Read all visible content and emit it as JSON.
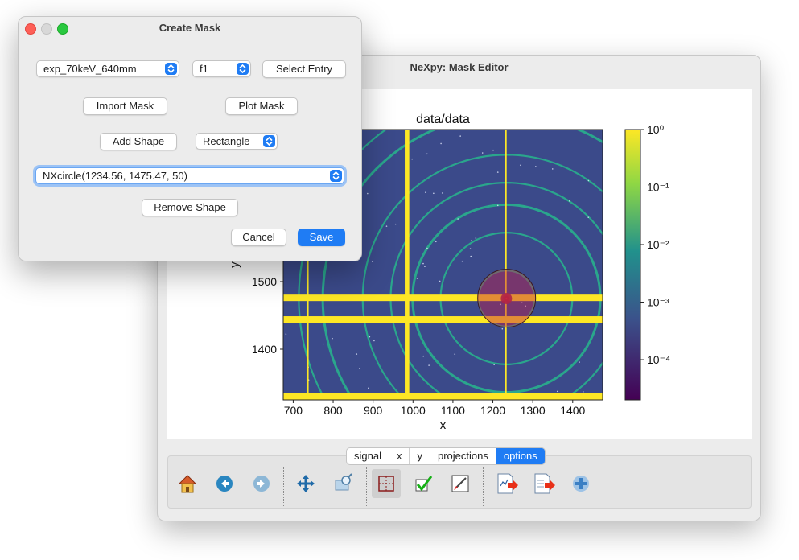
{
  "dialog": {
    "title": "Create Mask",
    "entry_select": "exp_70keV_640mm",
    "field_select": "f1",
    "select_entry_label": "Select Entry",
    "import_mask_label": "Import Mask",
    "plot_mask_label": "Plot Mask",
    "add_shape_label": "Add Shape",
    "shape_type_select": "Rectangle",
    "shape_list_select": "NXcircle(1234.56, 1475.47, 50)",
    "remove_shape_label": "Remove Shape",
    "cancel_label": "Cancel",
    "save_label": "Save"
  },
  "editor": {
    "title": "NeXpy: Mask Editor",
    "tabs": [
      "signal",
      "x",
      "y",
      "projections",
      "options"
    ],
    "active_tab": "options",
    "toolbar_icons": [
      "home-icon",
      "back-icon",
      "forward-icon",
      "pan-icon",
      "zoom-icon",
      "mask-rectangle-icon",
      "check-icon",
      "brush-icon",
      "export-plot-icon",
      "export-data-icon",
      "add-icon"
    ]
  },
  "chart_data": {
    "type": "heatmap",
    "title": "data/data",
    "xlabel": "x",
    "ylabel": "y",
    "xlim": [
      675,
      1475
    ],
    "ylim": [
      1725,
      1325
    ],
    "xticks": [
      700,
      800,
      900,
      1000,
      1100,
      1200,
      1300,
      1400
    ],
    "yticks": [
      1400,
      1500,
      1600
    ],
    "colorbar": {
      "scale": "log",
      "tick_labels": [
        "10⁰",
        "10⁻¹",
        "10⁻²",
        "10⁻³",
        "10⁻⁴"
      ],
      "range": [
        2e-05,
        1
      ]
    },
    "beam_center": [
      1234,
      1475
    ],
    "mask_circle": {
      "cx": 1234.56,
      "cy": 1475.47,
      "r": 50
    },
    "colors": {
      "background": "#3b4a8a",
      "ring": "#29b08c",
      "gap": "#fde725",
      "mask": "#c0204a"
    }
  }
}
